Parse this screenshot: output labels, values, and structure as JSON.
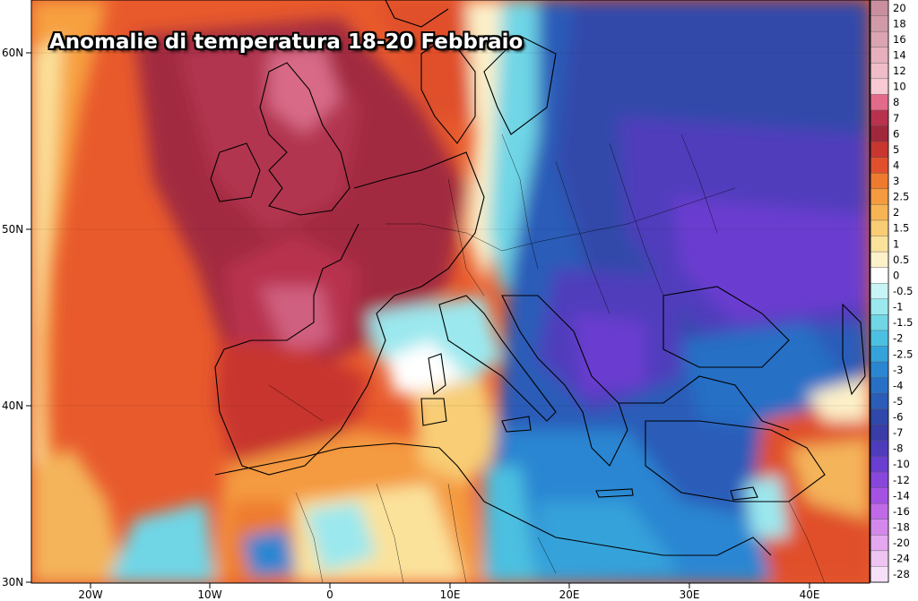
{
  "title": "Anomalie di temperatura 18-20 Febbraio",
  "map": {
    "lat_labels": [
      "60N",
      "50N",
      "40N",
      "30N"
    ],
    "lon_labels": [
      "20W",
      "10W",
      "0",
      "10E",
      "20E",
      "30E",
      "40E"
    ]
  },
  "colorbar": {
    "levels": [
      {
        "label": "20",
        "color": "#c98f9e"
      },
      {
        "label": "18",
        "color": "#d19aa8"
      },
      {
        "label": "16",
        "color": "#dba4b2"
      },
      {
        "label": "14",
        "color": "#e6b0bd"
      },
      {
        "label": "12",
        "color": "#efbcc8"
      },
      {
        "label": "10",
        "color": "#f6c9d3"
      },
      {
        "label": "8",
        "color": "#e46a8c"
      },
      {
        "label": "7",
        "color": "#b8324e"
      },
      {
        "label": "6",
        "color": "#a0283c"
      },
      {
        "label": "5",
        "color": "#c8362f"
      },
      {
        "label": "4",
        "color": "#e0502c"
      },
      {
        "label": "3",
        "color": "#ee7a2f"
      },
      {
        "label": "2.5",
        "color": "#f49a3f"
      },
      {
        "label": "2",
        "color": "#f7b455"
      },
      {
        "label": "1.5",
        "color": "#f8cd75"
      },
      {
        "label": "1",
        "color": "#fbe29b"
      },
      {
        "label": "0.5",
        "color": "#fdf1c9"
      },
      {
        "label": "0",
        "color": "#ffffff"
      },
      {
        "label": "-0.5",
        "color": "#c9f4f6"
      },
      {
        "label": "-1",
        "color": "#9be8ee"
      },
      {
        "label": "-1.5",
        "color": "#70d6e6"
      },
      {
        "label": "-2",
        "color": "#4cc0e0"
      },
      {
        "label": "-2.5",
        "color": "#36a2da"
      },
      {
        "label": "-3",
        "color": "#2b86d2"
      },
      {
        "label": "-4",
        "color": "#2770c6"
      },
      {
        "label": "-5",
        "color": "#2b5cb8"
      },
      {
        "label": "-6",
        "color": "#3048aa"
      },
      {
        "label": "-7",
        "color": "#3a3ca8"
      },
      {
        "label": "-8",
        "color": "#4f3cbc"
      },
      {
        "label": "-10",
        "color": "#6a3ed0"
      },
      {
        "label": "-12",
        "color": "#8846dc"
      },
      {
        "label": "-14",
        "color": "#a552e4"
      },
      {
        "label": "-16",
        "color": "#c06ae8"
      },
      {
        "label": "-18",
        "color": "#d488ec"
      },
      {
        "label": "-20",
        "color": "#e3a8ef"
      },
      {
        "label": "-24",
        "color": "#edc4f2"
      },
      {
        "label": "-28",
        "color": "#f6e0f7"
      }
    ]
  }
}
